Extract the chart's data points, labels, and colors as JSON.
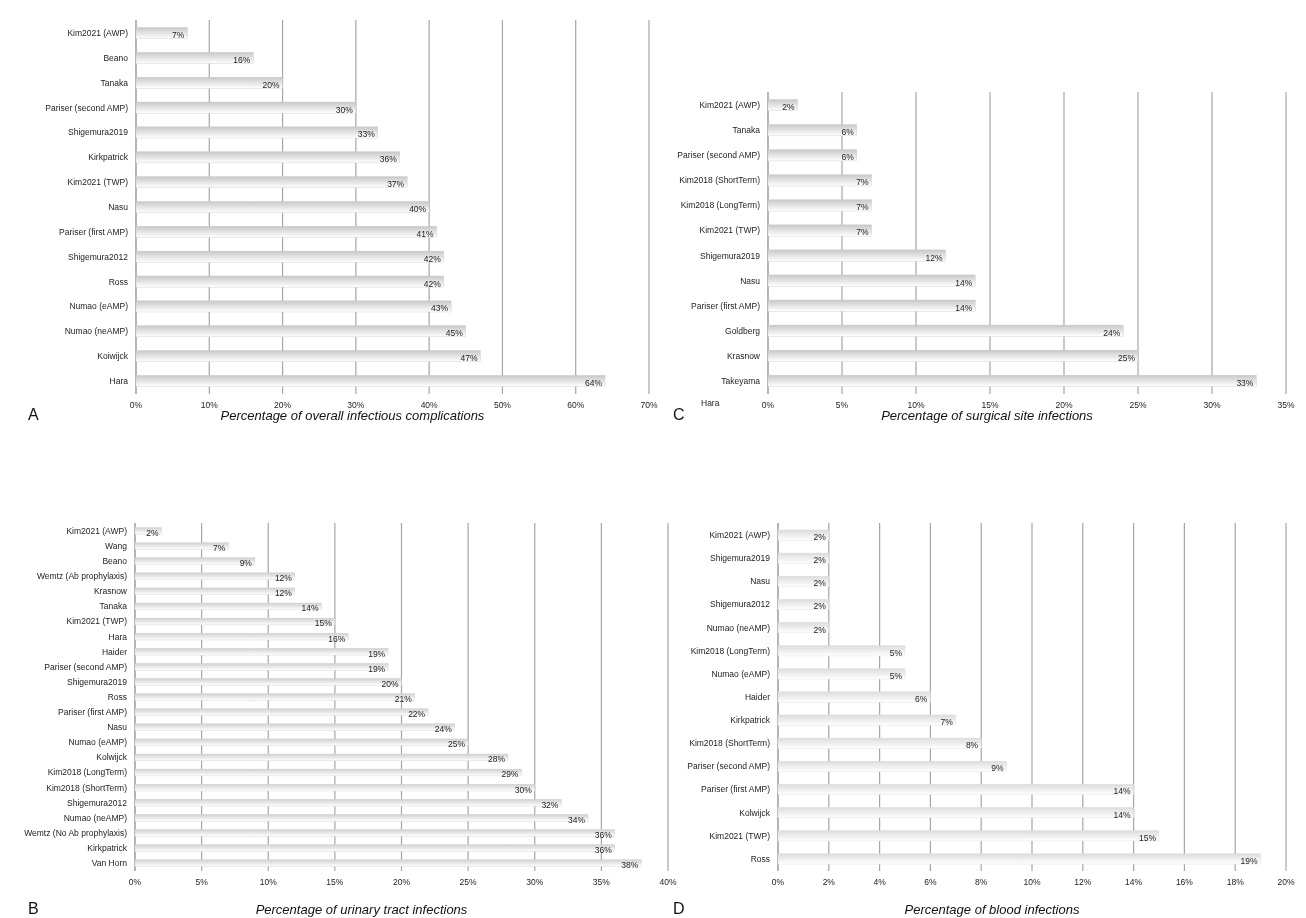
{
  "chart_data": [
    {
      "type": "bar",
      "orientation": "horizontal",
      "xlabel": "Percentage of overall infectious complications",
      "annotations": [
        "A"
      ],
      "grid": "x",
      "color": "#c8c8c8",
      "categories": [
        "Kim2021 (AWP)",
        "Beano",
        "Tanaka",
        "Pariser (second AMP)",
        "Shigemura2019",
        "Kirkpatrick",
        "Kim2021 (TWP)",
        "Nasu",
        "Pariser (first AMP)",
        "Shigemura2012",
        "Ross",
        "Numao (eAMP)",
        "Numao (neAMP)",
        "Koiwijck",
        "Hara"
      ],
      "values": [
        7,
        16,
        20,
        30,
        33,
        36,
        37,
        40,
        41,
        42,
        42,
        43,
        45,
        47,
        64
      ],
      "value_labels": [
        "7%",
        "16%",
        "20%",
        "30%",
        "33%",
        "36%",
        "37%",
        "40%",
        "41%",
        "42%",
        "42%",
        "43%",
        "45%",
        "47%",
        "64%"
      ],
      "xlim": [
        0,
        70
      ],
      "xticks": [
        {
          "value": 0,
          "label": "0%"
        },
        {
          "value": 10,
          "label": "10%"
        },
        {
          "value": 20,
          "label": "20%"
        },
        {
          "value": 30,
          "label": "30%"
        },
        {
          "value": 40,
          "label": "40%"
        },
        {
          "value": 50,
          "label": "50%"
        },
        {
          "value": 60,
          "label": "60%"
        },
        {
          "value": 70,
          "label": "70%"
        }
      ]
    },
    {
      "type": "bar",
      "orientation": "horizontal",
      "xlabel": "Percentage of urinary tract infections",
      "annotations": [
        "B"
      ],
      "grid": "x",
      "color": "#d0d0d0",
      "categories": [
        "Kim2021 (AWP)",
        "Wang",
        "Beano",
        "Wemtz (Ab prophylaxis)",
        "Krasnow",
        "Tanaka",
        "Kim2021 (TWP)",
        "Hara",
        "Haider",
        "Pariser (second AMP)",
        "Shigemura2019",
        "Ross",
        "Pariser (first AMP)",
        "Nasu",
        "Numao (eAMP)",
        "Kolwijck",
        "Kim2018 (LongTerm)",
        "Kim2018 (ShortTerm)",
        "Shigemura2012",
        "Numao (neAMP)",
        "Wemtz (No Ab prophylaxis)",
        "Kirkpatrick",
        "Van Horn"
      ],
      "values": [
        2,
        7,
        9,
        12,
        12,
        14,
        15,
        16,
        19,
        19,
        20,
        21,
        22,
        24,
        25,
        28,
        29,
        30,
        32,
        34,
        36,
        36,
        38
      ],
      "value_labels": [
        "2%",
        "7%",
        "9%",
        "12%",
        "12%",
        "14%",
        "15%",
        "16%",
        "19%",
        "19%",
        "20%",
        "21%",
        "22%",
        "24%",
        "25%",
        "28%",
        "29%",
        "30%",
        "32%",
        "34%",
        "36%",
        "36%",
        "38%"
      ],
      "xlim": [
        0,
        40
      ],
      "xticks": [
        {
          "value": 0,
          "label": "0%"
        },
        {
          "value": 5,
          "label": "5%"
        },
        {
          "value": 10,
          "label": "10%"
        },
        {
          "value": 15,
          "label": "15%"
        },
        {
          "value": 20,
          "label": "20%"
        },
        {
          "value": 25,
          "label": "25%"
        },
        {
          "value": 30,
          "label": "30%"
        },
        {
          "value": 35,
          "label": "35%"
        },
        {
          "value": 40,
          "label": "40%"
        }
      ]
    },
    {
      "type": "bar",
      "orientation": "horizontal",
      "xlabel": "Percentage of surgical site infections",
      "annotations": [
        "C",
        "Hara"
      ],
      "grid": "x",
      "color": "#c8c8c8",
      "categories": [
        "Kim2021 (AWP)",
        "Tanaka",
        "Pariser (second AMP)",
        "Kim2018 (ShortTerm)",
        "Kim2018 (LongTerm)",
        "Kim2021 (TWP)",
        "Shigemura2019",
        "Nasu",
        "Pariser (first AMP)",
        "Goldberg",
        "Krasnow",
        "Takeyama"
      ],
      "values": [
        2,
        6,
        6,
        7,
        7,
        7,
        12,
        14,
        14,
        24,
        25,
        33
      ],
      "value_labels": [
        "2%",
        "6%",
        "6%",
        "7%",
        "7%",
        "7%",
        "12%",
        "14%",
        "14%",
        "24%",
        "25%",
        "33%"
      ],
      "xlim": [
        0,
        35
      ],
      "xticks": [
        {
          "value": 0,
          "label": "0%"
        },
        {
          "value": 5,
          "label": "5%"
        },
        {
          "value": 10,
          "label": "10%"
        },
        {
          "value": 15,
          "label": "15%"
        },
        {
          "value": 20,
          "label": "20%"
        },
        {
          "value": 25,
          "label": "25%"
        },
        {
          "value": 30,
          "label": "30%"
        },
        {
          "value": 35,
          "label": "35%"
        }
      ]
    },
    {
      "type": "bar",
      "orientation": "horizontal",
      "xlabel": "Percentage of blood infections",
      "annotations": [
        "D"
      ],
      "grid": "x",
      "color": "#dcdcdc",
      "categories": [
        "Kim2021 (AWP)",
        "Shigemura2019",
        "Nasu",
        "Shigemura2012",
        "Numao (neAMP)",
        "Kim2018 (LongTerm)",
        "Numao (eAMP)",
        "Haider",
        "Kirkpatrick",
        "Kim2018 (ShortTerm)",
        "Pariser (second AMP)",
        "Pariser (first AMP)",
        "Kolwijck",
        "Kim2021 (TWP)",
        "Ross"
      ],
      "values": [
        2,
        2,
        2,
        2,
        2,
        5,
        5,
        6,
        7,
        8,
        9,
        14,
        14,
        15,
        19
      ],
      "value_labels": [
        "2%",
        "2%",
        "2%",
        "2%",
        "2%",
        "5%",
        "5%",
        "6%",
        "7%",
        "8%",
        "9%",
        "14%",
        "14%",
        "15%",
        "19%"
      ],
      "xlim": [
        0,
        20
      ],
      "xticks": [
        {
          "value": 0,
          "label": "0%"
        },
        {
          "value": 2,
          "label": "2%"
        },
        {
          "value": 4,
          "label": "4%"
        },
        {
          "value": 6,
          "label": "6%"
        },
        {
          "value": 8,
          "label": "8%"
        },
        {
          "value": 10,
          "label": "10%"
        },
        {
          "value": 12,
          "label": "12%"
        },
        {
          "value": 14,
          "label": "14%"
        },
        {
          "value": 16,
          "label": "16%"
        },
        {
          "value": 18,
          "label": "18%"
        },
        {
          "value": 20,
          "label": "20%"
        }
      ]
    }
  ]
}
